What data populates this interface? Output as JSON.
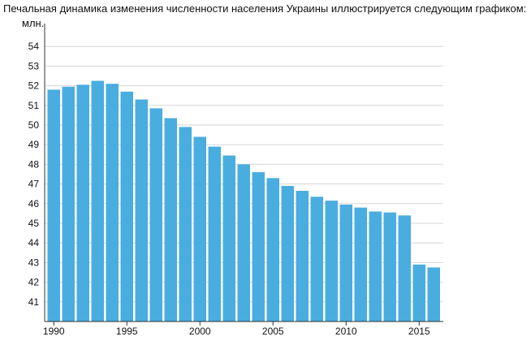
{
  "caption": "Печальная динамика изменения численности населения Украины иллюстрируется следующим графиком:",
  "chart_data": {
    "type": "bar",
    "title": "",
    "ylabel": "млн.",
    "xlabel": "",
    "ylim": [
      40,
      55
    ],
    "yticks": [
      41,
      42,
      43,
      44,
      45,
      46,
      47,
      48,
      49,
      50,
      51,
      52,
      53,
      54
    ],
    "xticks": [
      1990,
      1995,
      2000,
      2005,
      2010,
      2015
    ],
    "grid": true,
    "bar_color": "#4aaddf",
    "categories": [
      1990,
      1991,
      1992,
      1993,
      1994,
      1995,
      1996,
      1997,
      1998,
      1999,
      2000,
      2001,
      2002,
      2003,
      2004,
      2005,
      2006,
      2007,
      2008,
      2009,
      2010,
      2011,
      2012,
      2013,
      2014,
      2015,
      2016
    ],
    "values": [
      51.8,
      51.95,
      52.05,
      52.25,
      52.1,
      51.7,
      51.3,
      50.85,
      50.35,
      49.9,
      49.4,
      48.9,
      48.45,
      48.0,
      47.6,
      47.3,
      46.9,
      46.65,
      46.35,
      46.15,
      45.95,
      45.8,
      45.6,
      45.55,
      45.4,
      42.9,
      42.75
    ]
  }
}
